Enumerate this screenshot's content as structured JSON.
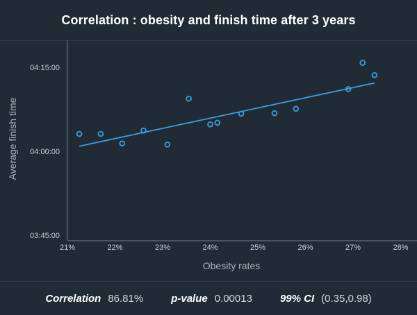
{
  "chart_data": {
    "type": "scatter",
    "title": "Correlation : obesity and finish time after 3 years",
    "xlabel": "Obesity rates",
    "ylabel": "Average finish time",
    "xlim": [
      21,
      28
    ],
    "ylim_minutes": [
      225,
      257
    ],
    "x_ticks": [
      "21%",
      "22%",
      "23%",
      "24%",
      "25%",
      "26%",
      "27%",
      "28%"
    ],
    "y_ticks": [
      {
        "label": "04:15:00",
        "value": 255
      },
      {
        "label": "04:00:00",
        "value": 240
      },
      {
        "label": "03:45:00",
        "value": 225
      }
    ],
    "points": [
      {
        "x": 21.25,
        "y": 243.1
      },
      {
        "x": 21.7,
        "y": 243.1
      },
      {
        "x": 22.15,
        "y": 241.4
      },
      {
        "x": 22.6,
        "y": 243.7
      },
      {
        "x": 23.1,
        "y": 241.2
      },
      {
        "x": 23.55,
        "y": 249.4
      },
      {
        "x": 24.0,
        "y": 244.8
      },
      {
        "x": 24.15,
        "y": 245.1
      },
      {
        "x": 24.65,
        "y": 246.7
      },
      {
        "x": 25.35,
        "y": 246.8
      },
      {
        "x": 25.8,
        "y": 247.6
      },
      {
        "x": 26.9,
        "y": 251.1
      },
      {
        "x": 27.2,
        "y": 255.8
      },
      {
        "x": 27.45,
        "y": 253.6
      }
    ],
    "trendline": {
      "x": [
        21.25,
        27.45
      ],
      "y": [
        240.9,
        252.2
      ]
    },
    "colors": {
      "point": "#3a9fe0",
      "line": "#3a9fe0",
      "axis": "#4a5561",
      "grid": "#2c3641"
    }
  },
  "stats": {
    "correlation_label": "Correlation",
    "correlation_value": "86.81%",
    "pvalue_label": "p-value",
    "pvalue_value": "0.00013",
    "ci_label": "99% CI",
    "ci_value": "(0.35,0.98)"
  }
}
